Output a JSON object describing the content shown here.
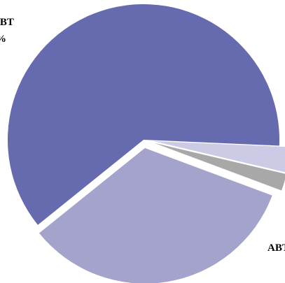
{
  "chart_data": {
    "type": "pie",
    "slices": [
      {
        "label": "ABT",
        "value": 33.5,
        "color": "#a3a3cc"
      },
      {
        "label": "IBT",
        "value": 61.5,
        "color": "#666aae"
      },
      {
        "label": "",
        "value": 3.0,
        "color": "#cbcbe6"
      },
      {
        "label": "",
        "value": 2.0,
        "color": "#a8a8a8"
      }
    ],
    "visible_labels": [
      "ABT",
      "IBT",
      "%"
    ]
  }
}
